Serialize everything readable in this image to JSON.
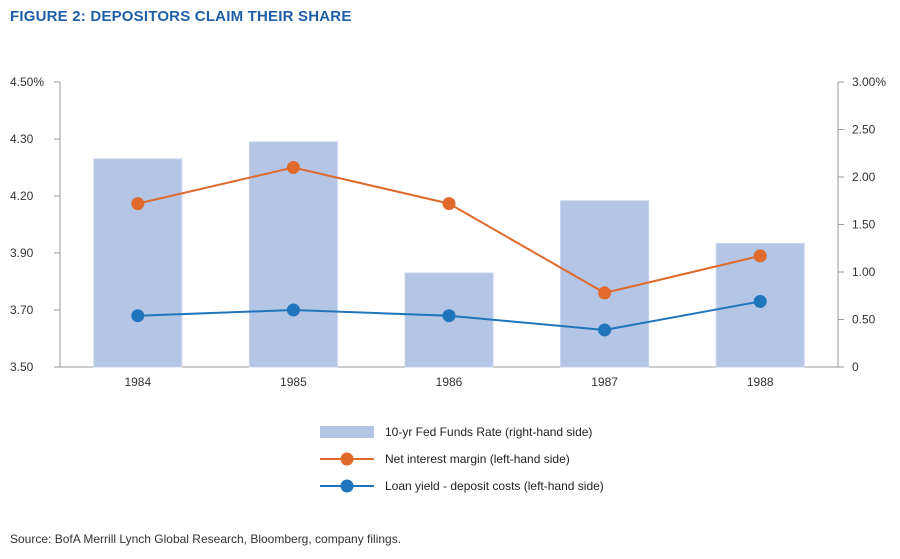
{
  "title": "FIGURE 2: DEPOSITORS CLAIM THEIR SHARE",
  "source": "Source: BofA Merrill Lynch Global Research, Bloomberg, company filings.",
  "colors": {
    "title": "#1f5fa8",
    "bar": "#b4c5e6",
    "nim": "#e06a2c",
    "spread": "#1f75bb",
    "axis": "#999999"
  },
  "chart_data": {
    "type": "bar",
    "categories": [
      "1984",
      "1985",
      "1986",
      "1987",
      "1988"
    ],
    "left_axis": {
      "ticks": [
        3.5,
        3.7,
        3.9,
        4.2,
        4.3,
        4.5
      ],
      "tick_labels": [
        "3.50",
        "3.70",
        "3.90",
        "4.20",
        "4.30",
        "4.50%"
      ]
    },
    "right_axis": {
      "ticks": [
        0,
        0.5,
        1.0,
        1.5,
        2.0,
        2.5,
        3.0
      ],
      "tick_labels": [
        "0",
        "0.50",
        "1.00",
        "1.50",
        "2.00",
        "2.50",
        "3.00%"
      ],
      "ylim": [
        0,
        3.0
      ]
    },
    "series": [
      {
        "name": "10-yr Fed Funds Rate (right-hand side)",
        "kind": "bar",
        "axis": "right",
        "values": [
          2.19,
          2.37,
          0.99,
          1.75,
          1.3
        ]
      },
      {
        "name": "Net interest margin (left-hand side)",
        "kind": "line",
        "axis": "left",
        "values": [
          4.16,
          4.25,
          4.16,
          3.76,
          3.89
        ]
      },
      {
        "name": "Loan yield - deposit costs (left-hand side)",
        "kind": "line",
        "axis": "left",
        "values": [
          3.68,
          3.7,
          3.68,
          3.63,
          3.73
        ]
      }
    ]
  }
}
